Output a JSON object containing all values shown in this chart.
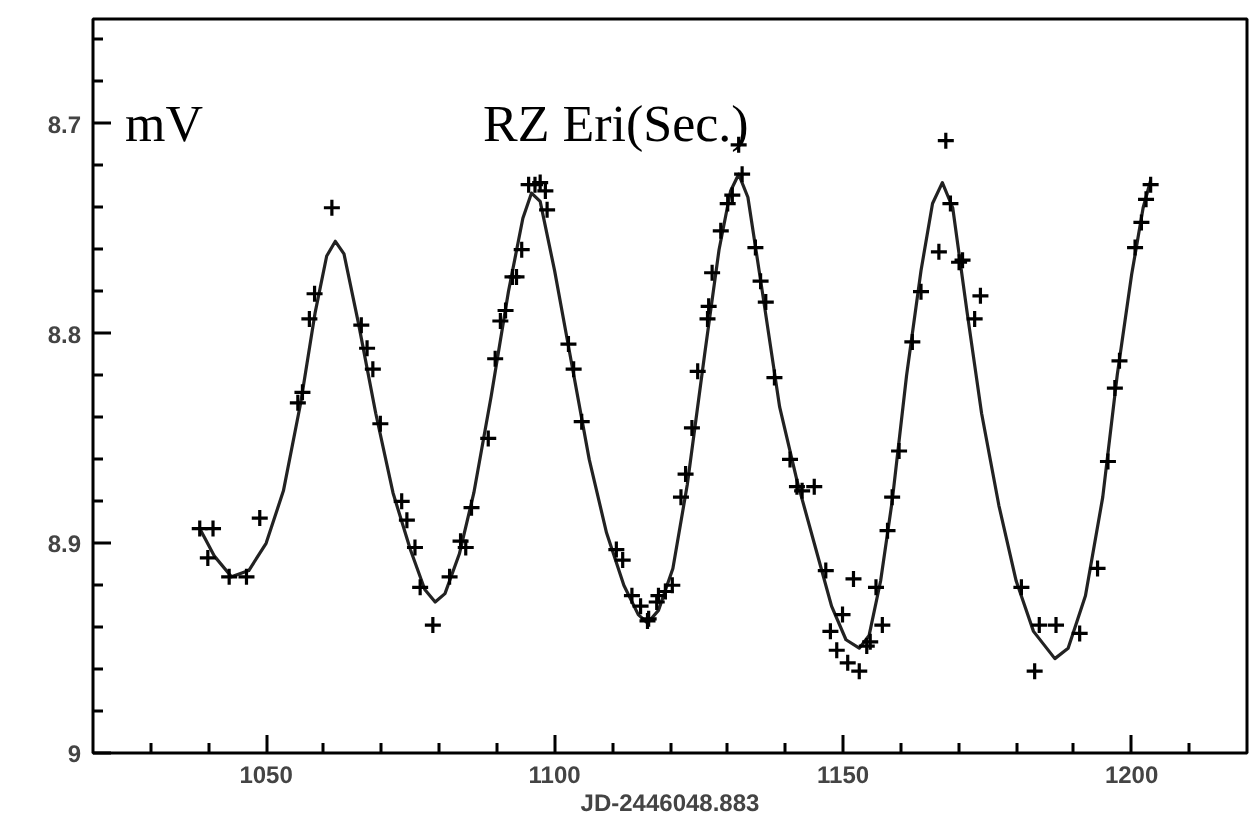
{
  "chart_data": {
    "type": "scatter",
    "title": "RZ Eri(Sec.)",
    "ylabel": "mV",
    "xlabel": "JD-2446048.883",
    "xlim": [
      1020,
      1220
    ],
    "ylim": [
      9,
      8.65
    ],
    "xticks": [
      {
        "value": 1030,
        "label": null
      },
      {
        "value": 1040,
        "label": null
      },
      1050,
      {
        "value": 1060,
        "label": null
      },
      {
        "value": 1070,
        "label": null
      },
      {
        "value": 1080,
        "label": null
      },
      {
        "value": 1090,
        "label": null
      },
      1100,
      {
        "value": 1110,
        "label": null
      },
      {
        "value": 1120,
        "label": null
      },
      {
        "value": 1130,
        "label": null
      },
      {
        "value": 1140,
        "label": null
      },
      1150,
      {
        "value": 1160,
        "label": null
      },
      {
        "value": 1170,
        "label": null
      },
      {
        "value": 1180,
        "label": null
      },
      {
        "value": 1190,
        "label": null
      },
      1200,
      {
        "value": 1210,
        "label": null
      }
    ],
    "yticks": [
      {
        "value": 8.66,
        "label": null
      },
      {
        "value": 8.68,
        "label": null
      },
      8.7,
      {
        "value": 8.72,
        "label": null
      },
      {
        "value": 8.74,
        "label": null
      },
      {
        "value": 8.76,
        "label": null
      },
      {
        "value": 8.78,
        "label": null
      },
      8.8,
      {
        "value": 8.82,
        "label": null
      },
      {
        "value": 8.84,
        "label": null
      },
      {
        "value": 8.86,
        "label": null
      },
      {
        "value": 8.88,
        "label": null
      },
      8.9,
      {
        "value": 8.92,
        "label": null
      },
      {
        "value": 8.94,
        "label": null
      },
      {
        "value": 8.96,
        "label": null
      },
      {
        "value": 8.98,
        "label": null
      },
      9
    ],
    "grid": false,
    "series": [
      {
        "marker": "cross",
        "color": "#000000",
        "x": [
          1038.5,
          1040.8,
          1039.9,
          1043.6,
          1046.6,
          1048.9,
          1055.5,
          1056.3,
          1057.5,
          1058.4,
          1061.4,
          1066.5,
          1067.5,
          1068.5,
          1069.8,
          1073.5,
          1074.4,
          1075.8,
          1076.7,
          1078.9,
          1081.8,
          1083.7,
          1084.6,
          1085.6,
          1088.5,
          1089.7,
          1090.6,
          1091.5,
          1092.7,
          1093.4,
          1094.3,
          1095.5,
          1096.6,
          1097.5,
          1098.4,
          1098.7,
          1102.4,
          1103.3,
          1104.7,
          1110.7,
          1111.8,
          1113.4,
          1114.9,
          1116.1,
          1118.0,
          1116.3,
          1117.7,
          1119.2,
          1120.4,
          1121.9,
          1122.7,
          1123.8,
          1124.8,
          1126.5,
          1126.7,
          1127.3,
          1128.8,
          1130.0,
          1130.8,
          1131.9,
          1132.5,
          1134.8,
          1135.7,
          1136.6,
          1138.1,
          1140.8,
          1142.0,
          1142.9,
          1145.0,
          1147.0,
          1147.8,
          1148.9,
          1149.9,
          1150.8,
          1151.8,
          1152.8,
          1154.1,
          1154.7,
          1155.7,
          1156.8,
          1157.7,
          1158.5,
          1159.7,
          1162.0,
          1163.5,
          1166.6,
          1167.8,
          1168.6,
          1170.1,
          1170.7,
          1172.8,
          1173.8,
          1180.9,
          1183.2,
          1184.0,
          1186.9,
          1191.0,
          1194.1,
          1195.9,
          1197.1,
          1197.9,
          1200.6,
          1201.7,
          1202.5,
          1203.3
        ],
        "values": [
          8.893,
          8.893,
          8.907,
          8.916,
          8.916,
          8.888,
          8.833,
          8.828,
          8.793,
          8.781,
          8.74,
          8.796,
          8.807,
          8.817,
          8.843,
          8.88,
          8.889,
          8.902,
          8.921,
          8.939,
          8.916,
          8.899,
          8.902,
          8.883,
          8.85,
          8.812,
          8.794,
          8.789,
          8.773,
          8.773,
          8.76,
          8.729,
          8.729,
          8.728,
          8.732,
          8.741,
          8.805,
          8.817,
          8.842,
          8.903,
          8.908,
          8.925,
          8.93,
          8.937,
          8.925,
          8.936,
          8.928,
          8.923,
          8.92,
          8.878,
          8.867,
          8.845,
          8.818,
          8.793,
          8.787,
          8.771,
          8.751,
          8.738,
          8.734,
          8.71,
          8.724,
          8.759,
          8.775,
          8.785,
          8.821,
          8.86,
          8.873,
          8.875,
          8.873,
          8.913,
          8.942,
          8.951,
          8.934,
          8.957,
          8.917,
          8.961,
          8.949,
          8.947,
          8.921,
          8.939,
          8.894,
          8.878,
          8.856,
          8.804,
          8.78,
          8.761,
          8.708,
          8.738,
          8.766,
          8.765,
          8.793,
          8.782,
          8.921,
          8.961,
          8.939,
          8.939,
          8.943,
          8.912,
          8.861,
          8.826,
          8.813,
          8.759,
          8.747,
          8.736,
          8.729
        ]
      },
      {
        "type": "line",
        "marker": "none",
        "line_style": "solid",
        "color": "#222222",
        "x": [
          1038.5,
          1041,
          1044,
          1047,
          1050,
          1053,
          1056,
          1058.5,
          1060.5,
          1062,
          1063.5,
          1066,
          1069,
          1072,
          1075,
          1077.5,
          1079.3,
          1081,
          1083.5,
          1086,
          1089,
          1092,
          1094.5,
          1096,
          1097.5,
          1100,
          1103,
          1106,
          1109,
          1112,
          1114.5,
          1116.1,
          1118,
          1120.5,
          1123,
          1126,
          1128.5,
          1130.5,
          1131.9,
          1133.5,
          1136,
          1139,
          1142,
          1145,
          1148,
          1150.5,
          1152.8,
          1154.5,
          1156.5,
          1158.5,
          1161,
          1163.5,
          1165.5,
          1167.2,
          1169,
          1171.5,
          1174,
          1177,
          1180,
          1183,
          1186.7,
          1189,
          1192,
          1195,
          1197.5,
          1200,
          1202,
          1203.3
        ],
        "values": [
          8.893,
          8.906,
          8.916,
          8.913,
          8.9,
          8.875,
          8.833,
          8.79,
          8.763,
          8.756,
          8.762,
          8.795,
          8.838,
          8.876,
          8.903,
          8.922,
          8.928,
          8.924,
          8.905,
          8.876,
          8.83,
          8.78,
          8.745,
          8.733,
          8.737,
          8.77,
          8.815,
          8.86,
          8.895,
          8.92,
          8.934,
          8.938,
          8.932,
          8.912,
          8.872,
          8.81,
          8.76,
          8.732,
          8.724,
          8.735,
          8.78,
          8.835,
          8.87,
          8.9,
          8.93,
          8.946,
          8.95,
          8.944,
          8.918,
          8.88,
          8.82,
          8.77,
          8.738,
          8.728,
          8.74,
          8.79,
          8.838,
          8.882,
          8.918,
          8.942,
          8.955,
          8.95,
          8.925,
          8.878,
          8.82,
          8.772,
          8.74,
          8.727
        ]
      }
    ]
  }
}
